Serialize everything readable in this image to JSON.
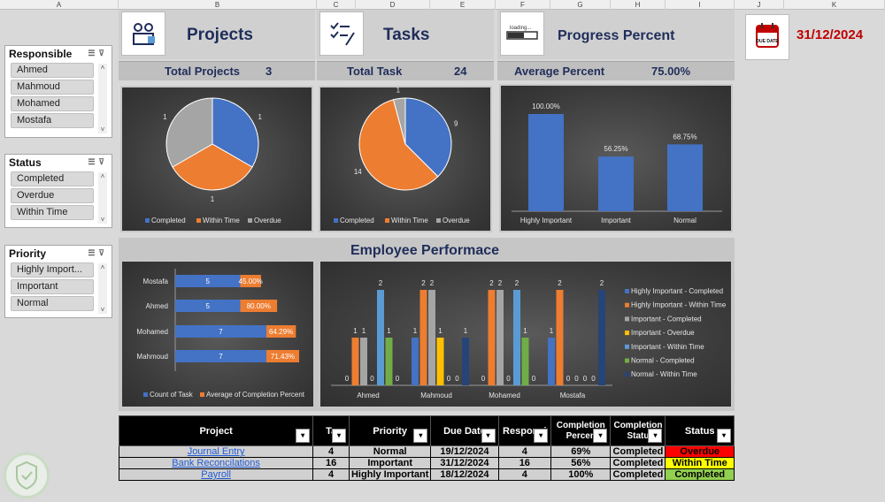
{
  "columns": [
    "A",
    "B",
    "C",
    "D",
    "E",
    "F",
    "G",
    "H",
    "I",
    "J",
    "K"
  ],
  "slicers": {
    "responsible": {
      "title": "Responsible",
      "items": [
        "Ahmed",
        "Mahmoud",
        "Mohamed",
        "Mostafa"
      ]
    },
    "status": {
      "title": "Status",
      "items": [
        "Completed",
        "Overdue",
        "Within Time"
      ]
    },
    "priority": {
      "title": "Priority",
      "items": [
        "Highly Import...",
        "Important",
        "Normal"
      ]
    }
  },
  "cards": {
    "projects": {
      "title": "Projects",
      "sub_label": "Total Projects",
      "sub_value": "3",
      "icon": "team-icon"
    },
    "tasks": {
      "title": "Tasks",
      "sub_label": "Total Task",
      "sub_value": "24",
      "icon": "checklist-icon"
    },
    "progress": {
      "title": "Progress Percent",
      "sub_label": "Average Percent",
      "sub_value": "75.00%",
      "icon": "loading-bar-icon"
    }
  },
  "due": {
    "date": "31/12/2024",
    "icon_text": "DUE DATE",
    "icon": "calendar-icon"
  },
  "perf_title": "Employee Performace",
  "colors": {
    "blue": "#4472c4",
    "orange": "#ed7d31",
    "gray": "#a5a5a5",
    "yellow": "#ffc000",
    "lightblue": "#5b9bd5",
    "green": "#70ad47",
    "navy": "#264478"
  },
  "chart_data": [
    {
      "type": "pie",
      "categories": [
        "Completed",
        "Within Time",
        "Overdue"
      ],
      "values": [
        1,
        1,
        1
      ],
      "legend": "bottom"
    },
    {
      "type": "pie",
      "categories": [
        "Completed",
        "Within Time",
        "Overdue"
      ],
      "values": [
        9,
        14,
        1
      ],
      "legend": "bottom"
    },
    {
      "type": "bar",
      "categories": [
        "Highly Important",
        "Important",
        "Normal"
      ],
      "values": [
        100.0,
        56.25,
        68.75
      ],
      "value_labels": [
        "100.00%",
        "56.25%",
        "68.75%"
      ]
    },
    {
      "type": "bar",
      "orientation": "horizontal-stacked",
      "categories": [
        "Mostafa",
        "Ahmed",
        "Mohamed",
        "Mahmoud"
      ],
      "series": [
        {
          "name": "Count of Task",
          "values": [
            5,
            5,
            7,
            7
          ]
        },
        {
          "name": "Average of Completion Percent",
          "values": [
            45.0,
            80.0,
            64.29,
            71.43
          ],
          "labels": [
            "45.00%",
            "80.00%",
            "64.29%",
            "71.43%"
          ]
        }
      ],
      "legend": "bottom"
    },
    {
      "type": "bar",
      "categories": [
        "Ahmed",
        "Mahmoud",
        "Mohamed",
        "Mostafa"
      ],
      "series": [
        {
          "name": "Highly Important - Completed",
          "values": [
            0,
            1,
            0,
            1
          ]
        },
        {
          "name": "Highly Important - Within Time",
          "values": [
            1,
            2,
            2,
            2
          ]
        },
        {
          "name": "Important - Completed",
          "values": [
            1,
            2,
            2,
            0
          ]
        },
        {
          "name": "Important - Overdue",
          "values": [
            0,
            1,
            0,
            0
          ]
        },
        {
          "name": "Important - Within Time",
          "values": [
            2,
            0,
            2,
            0
          ]
        },
        {
          "name": "Normal - Completed",
          "values": [
            1,
            0,
            1,
            0
          ]
        },
        {
          "name": "Normal - Within Time",
          "values": [
            0,
            1,
            0,
            2
          ]
        }
      ],
      "legend": "right"
    }
  ],
  "table": {
    "headers": [
      "Project",
      "Task",
      "Priority",
      "Due Date",
      "Responsible",
      "Completion Percent",
      "Completion Status",
      "Status"
    ],
    "header_display": [
      "Project",
      "Ta",
      "Priority",
      "Due Date",
      "Responsi",
      "Completion Percen",
      "Completion Statu",
      "Status"
    ],
    "rows": [
      {
        "project": "Journal Entry",
        "task": "4",
        "priority": "Normal",
        "due": "19/12/2024",
        "resp": "4",
        "pct": "69%",
        "cstatus": "Completed",
        "status": "Overdue"
      },
      {
        "project": "Bank Reconcilations",
        "task": "16",
        "priority": "Important",
        "due": "31/12/2024",
        "resp": "16",
        "pct": "56%",
        "cstatus": "Completed",
        "status": "Within Time"
      },
      {
        "project": "Payroll",
        "task": "4",
        "priority": "Highly Important",
        "due": "18/12/2024",
        "resp": "4",
        "pct": "100%",
        "cstatus": "Completed",
        "status": "Completed"
      }
    ]
  }
}
